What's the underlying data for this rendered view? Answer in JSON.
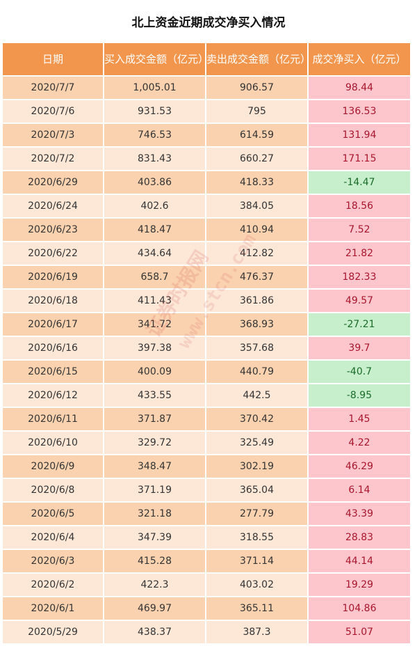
{
  "chart_data": {
    "type": "table",
    "title": "北上资金近期成交净买入情况",
    "columns": [
      "日期",
      "买入成交金额（亿元）",
      "卖出成交金额（亿元）",
      "成交净买入（亿元）"
    ],
    "rows": [
      [
        "2020/7/7",
        "1,005.01",
        "906.57",
        "98.44"
      ],
      [
        "2020/7/6",
        "931.53",
        "795",
        "136.53"
      ],
      [
        "2020/7/3",
        "746.53",
        "614.59",
        "131.94"
      ],
      [
        "2020/7/2",
        "831.43",
        "660.27",
        "171.15"
      ],
      [
        "2020/6/29",
        "403.86",
        "418.33",
        "-14.47"
      ],
      [
        "2020/6/24",
        "402.6",
        "384.05",
        "18.56"
      ],
      [
        "2020/6/23",
        "418.47",
        "410.94",
        "7.52"
      ],
      [
        "2020/6/22",
        "434.64",
        "412.82",
        "21.82"
      ],
      [
        "2020/6/19",
        "658.7",
        "476.37",
        "182.33"
      ],
      [
        "2020/6/18",
        "411.43",
        "361.86",
        "49.57"
      ],
      [
        "2020/6/17",
        "341.72",
        "368.93",
        "-27.21"
      ],
      [
        "2020/6/16",
        "397.38",
        "357.68",
        "39.7"
      ],
      [
        "2020/6/15",
        "400.09",
        "440.79",
        "-40.7"
      ],
      [
        "2020/6/12",
        "433.55",
        "442.5",
        "-8.95"
      ],
      [
        "2020/6/11",
        "371.87",
        "370.42",
        "1.45"
      ],
      [
        "2020/6/10",
        "329.72",
        "325.49",
        "4.22"
      ],
      [
        "2020/6/9",
        "348.47",
        "302.19",
        "46.29"
      ],
      [
        "2020/6/8",
        "371.19",
        "365.04",
        "6.14"
      ],
      [
        "2020/6/5",
        "321.18",
        "277.79",
        "43.39"
      ],
      [
        "2020/6/4",
        "347.39",
        "318.55",
        "28.83"
      ],
      [
        "2020/6/3",
        "415.28",
        "371.14",
        "44.14"
      ],
      [
        "2020/6/2",
        "422.3",
        "403.02",
        "19.29"
      ],
      [
        "2020/6/1",
        "469.97",
        "365.11",
        "104.86"
      ],
      [
        "2020/5/29",
        "438.37",
        "387.3",
        "51.07"
      ]
    ],
    "watermark": [
      "证券时报网",
      "www.stcn.com"
    ],
    "colors": {
      "header": "#f2964e",
      "row_odd": "#fbd2b0",
      "row_even": "#fde8d8",
      "positive_bg": "#fcc6cc",
      "positive_text": "#a8162d",
      "negative_bg": "#c7efcb",
      "negative_text": "#1a6b2a"
    }
  }
}
